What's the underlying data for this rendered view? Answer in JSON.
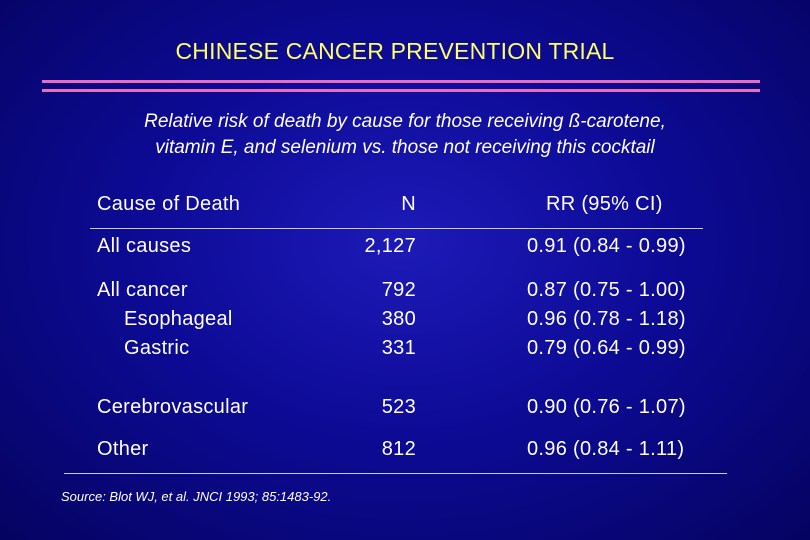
{
  "slide": {
    "title": "CHINESE CANCER PREVENTION TRIAL",
    "subtitle_line1": "Relative risk of death by cause for those receiving ß-carotene,",
    "subtitle_line2": "vitamin E, and selenium vs. those not receiving this cocktail",
    "source": "Source:  Blot WJ, et al.  JNCI 1993; 85:1483-92."
  },
  "table": {
    "headers": {
      "cause": "Cause of Death",
      "n": "N",
      "rr": "RR (95% CI)"
    },
    "rows": [
      {
        "cause": "All causes",
        "n": "2,127",
        "rr": "0.91 (0.84 - 0.99)"
      },
      {
        "cause": "All cancer",
        "n": "792",
        "rr": "0.87 (0.75 - 1.00)"
      },
      {
        "cause": "Esophageal",
        "n": "380",
        "rr": "0.96 (0.78 - 1.18)"
      },
      {
        "cause": "Gastric",
        "n": "331",
        "rr": "0.79 (0.64 - 0.99)"
      },
      {
        "cause": "Cerebrovascular",
        "n": "523",
        "rr": "0.90 (0.76 - 1.07)"
      },
      {
        "cause": "Other",
        "n": "812",
        "rr": "0.96 (0.84 - 1.11)"
      }
    ]
  },
  "colors": {
    "background": "#0d0b96",
    "title": "#ffff66",
    "rule": "#e86dbd",
    "text": "#ffffff"
  }
}
